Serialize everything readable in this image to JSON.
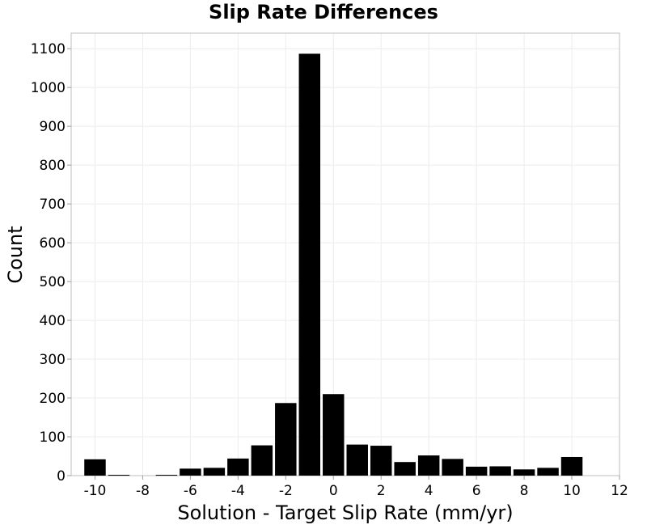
{
  "chart_data": {
    "type": "bar",
    "title": "Slip Rate Differences",
    "xlabel": "Solution - Target Slip Rate (mm/yr)",
    "ylabel": "Count",
    "xlim": [
      -11,
      12
    ],
    "ylim": [
      0,
      1140
    ],
    "xticks": [
      -10,
      -8,
      -6,
      -4,
      -2,
      0,
      2,
      4,
      6,
      8,
      10,
      12
    ],
    "yticks": [
      0,
      100,
      200,
      300,
      400,
      500,
      600,
      700,
      800,
      900,
      1000,
      1100
    ],
    "bin_width": 1,
    "bin_centers": [
      -10,
      -9,
      -8,
      -7,
      -6,
      -5,
      -4,
      -3,
      -2,
      -1,
      0,
      1,
      2,
      3,
      4,
      5,
      6,
      7,
      8,
      9,
      10
    ],
    "values": [
      42,
      2,
      0,
      2,
      18,
      20,
      44,
      78,
      187,
      1087,
      210,
      80,
      77,
      35,
      52,
      43,
      23,
      24,
      16,
      20,
      48
    ],
    "bar_color": "#000000",
    "grid": true
  }
}
